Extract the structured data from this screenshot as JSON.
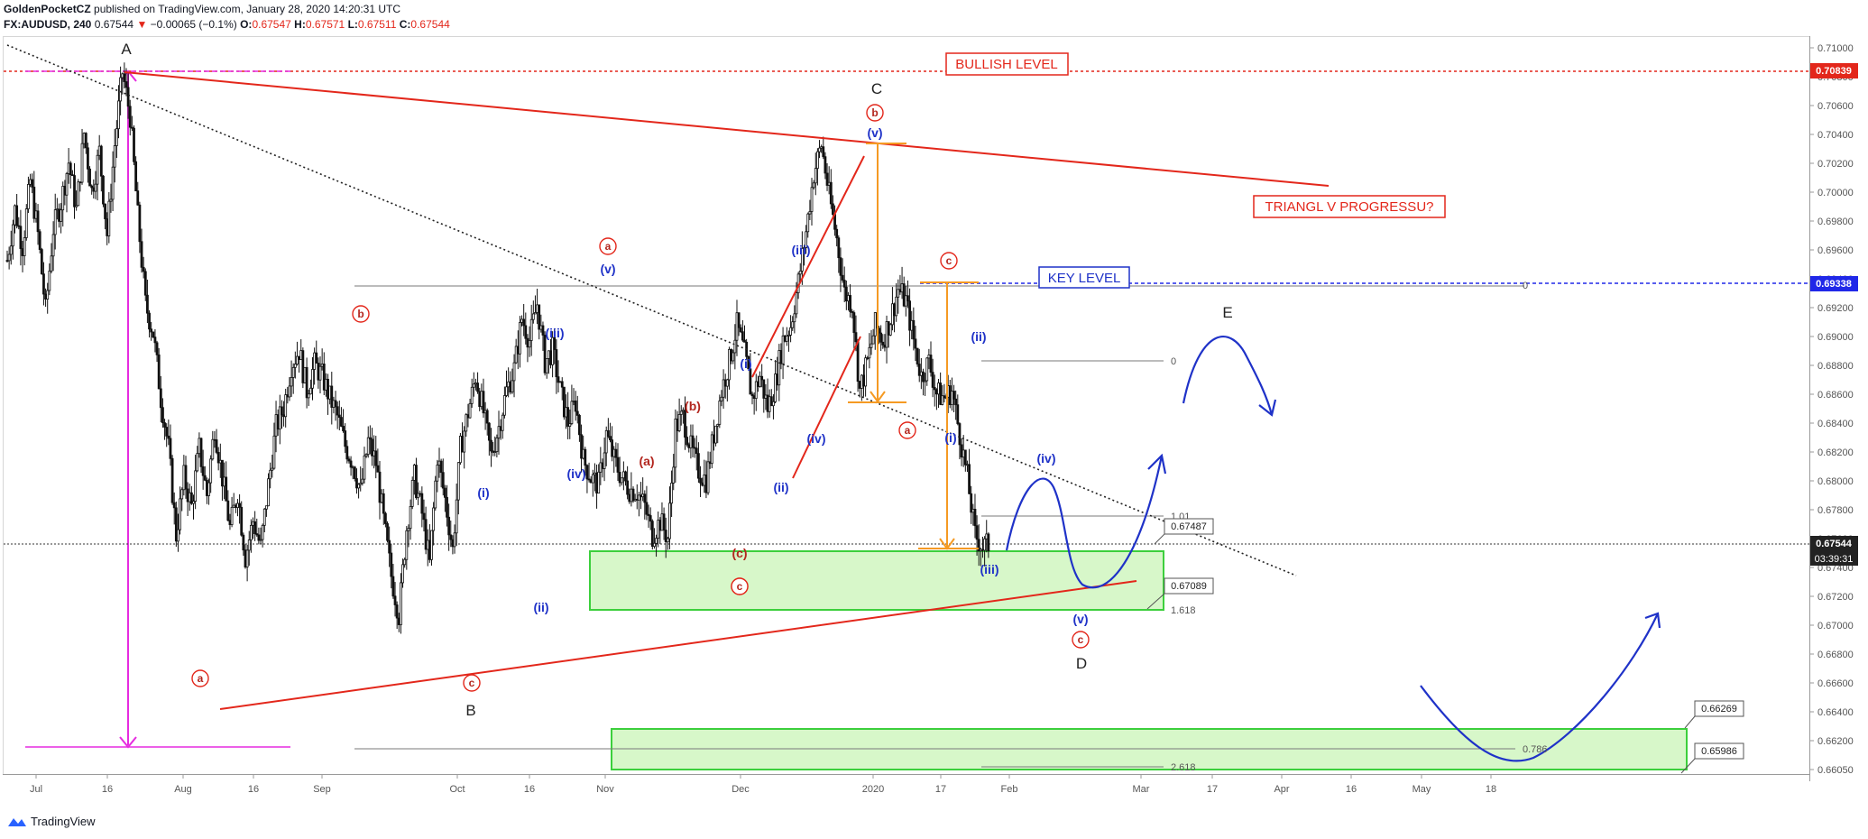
{
  "header": {
    "author": "GoldenPocketCZ",
    "published": "published on TradingView.com, January 28, 2020 14:20:31 UTC",
    "symbol": "FX:AUDUSD, 240",
    "last": "0.67544",
    "arrow": "▼",
    "change": "−0.00065 (−0.1%)",
    "o_label": "O:",
    "o_val": "0.67547",
    "h_label": "H:",
    "h_val": "0.67571",
    "l_label": "L:",
    "l_val": "0.67511",
    "c_label": "C:",
    "c_val": "0.67544"
  },
  "footer": {
    "brand": "TradingView"
  },
  "colors": {
    "red": "#e3271b",
    "blue": "#1f32c8",
    "magenta": "#e62ce0",
    "orange": "#f59a23",
    "green_fill": "#d7f7c9",
    "green_edge": "#3ccf3c",
    "dark_red": "#b3261e"
  },
  "chart_data": {
    "type": "candlestick",
    "title": "AUDUSD 4H",
    "ylim": [
      0.6595,
      0.7105
    ],
    "y_ticks": [
      "0.71000",
      "0.70800",
      "0.70600",
      "0.70400",
      "0.70200",
      "0.70000",
      "0.69800",
      "0.69600",
      "0.69400",
      "0.69200",
      "0.69000",
      "0.68800",
      "0.68600",
      "0.68400",
      "0.68200",
      "0.68000",
      "0.67800",
      "0.67600",
      "0.67400",
      "0.67200",
      "0.67000",
      "0.66800",
      "0.66600",
      "0.66400",
      "0.66200",
      "0.66050"
    ],
    "x_ticks": [
      "Jul",
      "16",
      "Aug",
      "16",
      "Sep",
      "Oct",
      "16",
      "Nov",
      "Dec",
      "2020",
      "17",
      "Feb",
      "Mar",
      "17",
      "Apr",
      "16",
      "May",
      "18"
    ],
    "price_labels": [
      {
        "text": "0.70839",
        "kind": "red"
      },
      {
        "text": "0.69338",
        "kind": "blue"
      },
      {
        "text": "0.67544",
        "kind": "last"
      },
      {
        "text": "03:39:31",
        "kind": "timer"
      }
    ],
    "boxed_labels": [
      "0.67487",
      "0.67089",
      "0.66269",
      "0.65986"
    ],
    "fib_labels": [
      "0",
      "0",
      "1.01",
      "1.618",
      "0.786",
      "2.618"
    ],
    "text_boxes": [
      "BULLISH LEVEL",
      "TRIANGL V PROGRESSU?",
      "KEY LEVEL"
    ],
    "wave_labels": [
      "A",
      "B",
      "C",
      "D",
      "E"
    ],
    "circled_labels": [
      "a",
      "b",
      "c",
      "a",
      "b",
      "c",
      "a",
      "b",
      "c",
      "c"
    ],
    "paren_labels": [
      "(i)",
      "(ii)",
      "(iii)",
      "(iv)",
      "(v)",
      "(a)",
      "(b)",
      "(c)",
      "(i)",
      "(ii)",
      "(iii)",
      "(iv)",
      "(v)",
      "(i)",
      "(ii)",
      "(iii)",
      "(iv)",
      "(v)"
    ],
    "price_path": [
      [
        0.695,
        0.6985,
        0.696,
        0.7005,
        0.6968,
        0.6915,
        0.6972,
        0.699,
        0.7018,
        0.6985,
        0.7038,
        0.6998,
        0.7025,
        0.6968,
        0.703,
        0.708,
        0.705,
        0.698,
        0.692,
        0.69,
        0.6855,
        0.682,
        0.676,
        0.68,
        0.678,
        0.682,
        0.6788,
        0.6835,
        0.68,
        0.6765,
        0.679,
        0.6745,
        0.677,
        0.6752,
        0.6795,
        0.6835,
        0.6848,
        0.6878,
        0.6888,
        0.686,
        0.6878,
        0.687,
        0.6855,
        0.6842,
        0.6822,
        0.681,
        0.679,
        0.6825,
        0.681,
        0.677,
        0.6732,
        0.6705,
        0.6765,
        0.68,
        0.6775,
        0.674,
        0.6815,
        0.6785,
        0.675,
        0.682,
        0.6845,
        0.687,
        0.6845,
        0.6815,
        0.6835,
        0.686,
        0.6875,
        0.691,
        0.6895,
        0.692,
        0.688,
        0.6888,
        0.686,
        0.6838,
        0.6852,
        0.6812,
        0.68,
        0.6795,
        0.683,
        0.6812,
        0.68,
        0.6792,
        0.679,
        0.678,
        0.676,
        0.677,
        0.6758,
        0.6835,
        0.6842,
        0.682,
        0.6805,
        0.6798,
        0.683,
        0.686,
        0.688,
        0.6905,
        0.6885,
        0.6855,
        0.687,
        0.6848,
        0.6865,
        0.6895,
        0.6905,
        0.6935,
        0.697,
        0.701,
        0.703,
        0.6995,
        0.6965,
        0.6928,
        0.692,
        0.686,
        0.688,
        0.6905,
        0.6895,
        0.691,
        0.693,
        0.6922,
        0.6895,
        0.687,
        0.688,
        0.6858,
        0.6855,
        0.686,
        0.683,
        0.68,
        0.676,
        0.6752,
        0.6754
      ]
    ]
  }
}
